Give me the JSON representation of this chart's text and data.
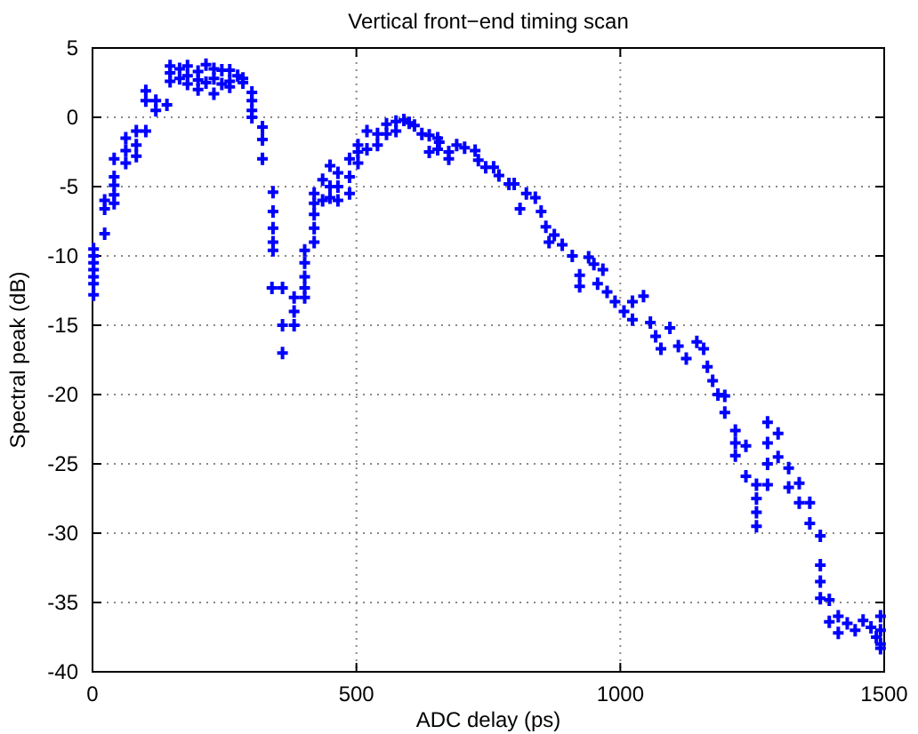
{
  "chart_data": {
    "type": "scatter",
    "title": "Vertical front−end timing scan",
    "xlabel": "ADC delay (ps)",
    "ylabel": "Spectral peak (dB)",
    "xlim": [
      0,
      1500
    ],
    "ylim": [
      -40,
      5
    ],
    "xticks": [
      0,
      500,
      1000,
      1500
    ],
    "yticks": [
      -40,
      -35,
      -30,
      -25,
      -20,
      -15,
      -10,
      -5,
      0,
      5
    ],
    "grid": true,
    "marker": "cross",
    "series": [
      {
        "color": "#0000ff",
        "x": [
          2,
          2,
          2,
          2,
          2,
          2,
          2,
          23,
          23,
          23,
          41,
          41,
          41,
          41,
          41,
          63,
          63,
          63,
          83,
          83,
          83,
          101,
          101,
          101,
          120,
          120,
          141,
          147,
          147,
          147,
          165,
          165,
          180,
          180,
          180,
          200,
          200,
          200,
          215,
          215,
          230,
          230,
          230,
          245,
          245,
          260,
          260,
          260,
          275,
          285,
          285,
          302,
          302,
          302,
          302,
          322,
          322,
          322,
          342,
          342,
          342,
          342,
          342,
          340,
          360,
          360,
          360,
          382,
          382,
          382,
          402,
          402,
          402,
          402,
          402,
          420,
          420,
          420,
          420,
          420,
          436,
          436,
          450,
          450,
          450,
          465,
          465,
          465,
          487,
          487,
          487,
          503,
          503,
          503,
          520,
          520,
          540,
          540,
          557,
          557,
          575,
          575,
          590,
          600,
          610,
          624,
          638,
          638,
          654,
          654,
          657,
          675,
          675,
          690,
          705,
          725,
          731,
          745,
          760,
          770,
          789,
          799,
          810,
          822,
          839,
          850,
          859,
          865,
          875,
          890,
          909,
          923,
          923,
          940,
          950,
          967,
          957,
          975,
          990,
          1007,
          1023,
          1023,
          1044,
          1057,
          1067,
          1077,
          1094,
          1110,
          1125,
          1145,
          1158,
          1165,
          1175,
          1185,
          1198,
          1198,
          1218,
          1218,
          1218,
          1238,
          1238,
          1258,
          1258,
          1258,
          1258,
          1279,
          1279,
          1279,
          1279,
          1299,
          1299,
          1319,
          1319,
          1339,
          1339,
          1359,
          1359,
          1379,
          1379,
          1379,
          1379,
          1396,
          1396,
          1413,
          1413,
          1430,
          1445,
          1460,
          1475,
          1485,
          1493,
          1493,
          1493,
          1493
        ],
        "values": [
          -9.5,
          -10,
          -10.5,
          -11,
          -11.5,
          -12,
          -12.8,
          -6,
          -6.6,
          -8.4,
          -3,
          -4.3,
          -4.9,
          -5.6,
          -6.2,
          -1.5,
          -2.4,
          -3.3,
          -1,
          -2,
          -2.8,
          -1,
          1.9,
          1.2,
          1.2,
          0.5,
          0.9,
          3.7,
          3.2,
          2.6,
          3.5,
          2.8,
          3.7,
          3,
          2.4,
          3.3,
          2.7,
          2,
          3.8,
          2.5,
          3.5,
          2.8,
          1.7,
          3.4,
          2.4,
          3.4,
          2.6,
          2.2,
          3,
          2.8,
          2.5,
          1.8,
          1.2,
          0.5,
          0,
          -0.7,
          -1.6,
          -3,
          -5.4,
          -6.8,
          -8,
          -9,
          -9.6,
          -12.3,
          -12.3,
          -15,
          -17,
          -13,
          -14,
          -15,
          -9.6,
          -10.5,
          -11.5,
          -12.3,
          -13,
          -5.5,
          -6.2,
          -7,
          -8,
          -9,
          -4.5,
          -6,
          -3.5,
          -5,
          -5.8,
          -4,
          -5,
          -6,
          -3,
          -4.3,
          -5.5,
          -2,
          -2.5,
          -3.3,
          -1,
          -2.3,
          -1.2,
          -2,
          -0.5,
          -1.2,
          -0.3,
          -1,
          -0.2,
          -0.4,
          -0.6,
          -1.2,
          -1.3,
          -2.5,
          -1.5,
          -2.3,
          -1.8,
          -2.5,
          -3,
          -2,
          -2.2,
          -2.4,
          -3.1,
          -3.6,
          -3.6,
          -4.2,
          -4.8,
          -4.8,
          -6.6,
          -5.5,
          -5.8,
          -6.8,
          -7.9,
          -9,
          -8.5,
          -9.2,
          -10,
          -11.4,
          -12.2,
          -10.1,
          -10.6,
          -11,
          -12,
          -12.6,
          -13.3,
          -14,
          -13.3,
          -14.6,
          -12.9,
          -14.8,
          -15.8,
          -16.7,
          -15.2,
          -16.5,
          -17.4,
          -16.2,
          -16.7,
          -18,
          -19,
          -20,
          -20.1,
          -21.3,
          -22.6,
          -23.5,
          -24.4,
          -23.7,
          -25.9,
          -26.5,
          -27.5,
          -28.5,
          -29.5,
          -22,
          -23.5,
          -25,
          -26.5,
          -22.8,
          -24.5,
          -25.3,
          -26.7,
          -26.4,
          -27.8,
          -27.8,
          -29.3,
          -30.2,
          -32.3,
          -33.5,
          -34.7,
          -34.8,
          -36.4,
          -36,
          -37.2,
          -36.5,
          -37,
          -36.3,
          -36.8,
          -37.5,
          -36,
          -37,
          -38,
          -38.3
        ]
      }
    ]
  }
}
